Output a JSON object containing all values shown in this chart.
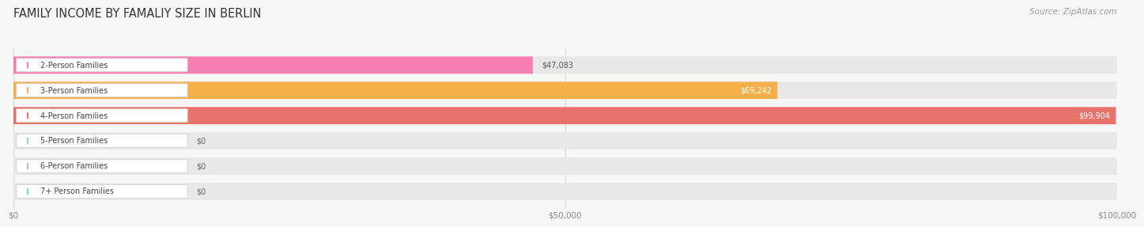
{
  "title": "FAMILY INCOME BY FAMALIY SIZE IN BERLIN",
  "source": "Source: ZipAtlas.com",
  "categories": [
    "2-Person Families",
    "3-Person Families",
    "4-Person Families",
    "5-Person Families",
    "6-Person Families",
    "7+ Person Families"
  ],
  "values": [
    47083,
    69242,
    99904,
    0,
    0,
    0
  ],
  "bar_colors": [
    "#f87db0",
    "#f5b04a",
    "#e8736a",
    "#aac4e8",
    "#c4aad8",
    "#7ecfcf"
  ],
  "value_labels": [
    "$47,083",
    "$69,242",
    "$99,904",
    "$0",
    "$0",
    "$0"
  ],
  "value_inside": [
    false,
    true,
    true,
    false,
    false,
    false
  ],
  "xlim": [
    0,
    100000
  ],
  "xticks": [
    0,
    50000,
    100000
  ],
  "xtick_labels": [
    "$0",
    "$50,000",
    "$100,000"
  ],
  "bg_color": "#f7f7f7",
  "bar_bg_color": "#e8e8e8",
  "title_fontsize": 10.5,
  "source_fontsize": 7.5,
  "label_fontsize": 7.0,
  "value_fontsize": 7.0,
  "tick_fontsize": 7.5
}
